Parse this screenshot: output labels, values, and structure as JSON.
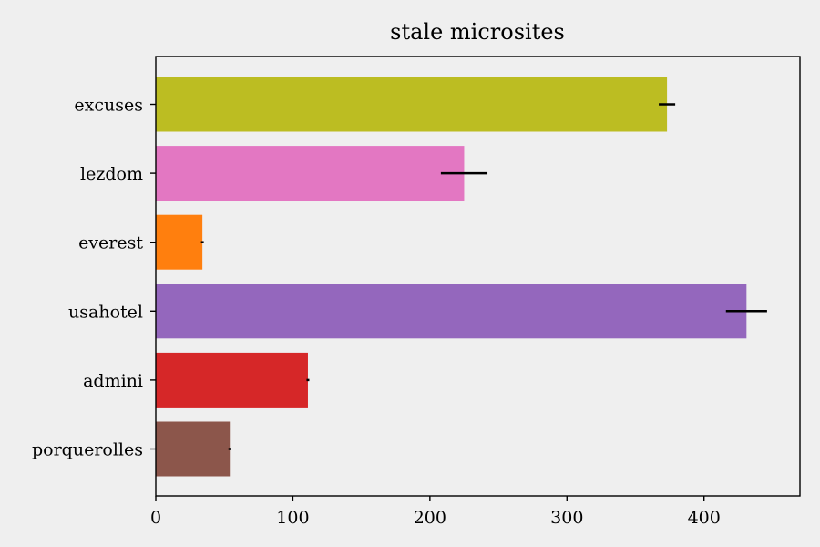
{
  "chart_data": {
    "type": "bar",
    "orientation": "horizontal",
    "title": "stale microsites",
    "xlabel": "",
    "ylabel": "",
    "xlim": [
      0,
      470
    ],
    "xticks": [
      0,
      100,
      200,
      300,
      400
    ],
    "categories": [
      "excuses",
      "lezdom",
      "everest",
      "usahotel",
      "admini",
      "porquerolles"
    ],
    "values": [
      373,
      225,
      34,
      431,
      111,
      54
    ],
    "errors": [
      6,
      17,
      1,
      15,
      1,
      1
    ],
    "colors": [
      "#bcbd22",
      "#e377c2",
      "#ff7f0e",
      "#9467bd",
      "#d62728",
      "#8c564b"
    ],
    "grid": false,
    "legend": "none"
  }
}
